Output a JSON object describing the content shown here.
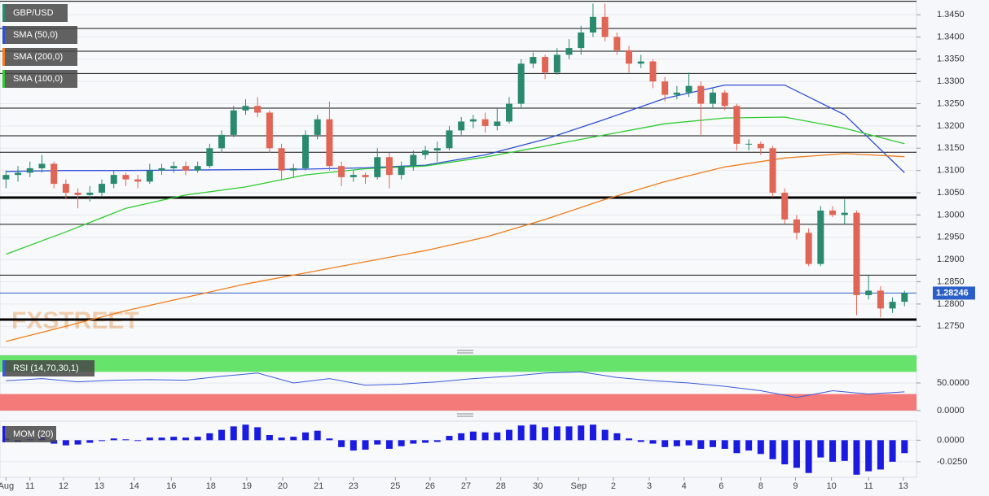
{
  "chart_data": [
    {
      "type": "candlestick",
      "name": "GBP/USD",
      "up_color": "#2a8a6e",
      "down_color": "#e06555",
      "open": [
        1.308,
        1.309,
        1.3095,
        1.3105,
        1.3115,
        1.307,
        1.305,
        1.3045,
        1.305,
        1.307,
        1.309,
        1.308,
        1.3075,
        1.31,
        1.3105,
        1.311,
        1.31,
        1.311,
        1.315,
        1.318,
        1.3235,
        1.3245,
        1.323,
        1.315,
        1.31,
        1.3105,
        1.318,
        1.3215,
        1.311,
        1.3085,
        1.309,
        1.3085,
        1.313,
        1.309,
        1.311,
        1.3135,
        1.3145,
        1.315,
        1.319,
        1.321,
        1.3215,
        1.32,
        1.321,
        1.325,
        1.334,
        1.3355,
        1.332,
        1.336,
        1.3375,
        1.341,
        1.3445,
        1.34,
        1.337,
        1.334,
        1.3345,
        1.33,
        1.327,
        1.3275,
        1.329,
        1.325,
        1.3275,
        1.3245,
        1.316,
        1.316,
        1.315,
        1.305,
        1.299,
        1.296,
        1.289,
        1.301,
        1.3,
        1.3005,
        1.282,
        1.283,
        1.279,
        1.2805
      ],
      "high": [
        1.31,
        1.311,
        1.312,
        1.3135,
        1.312,
        1.308,
        1.306,
        1.3065,
        1.308,
        1.31,
        1.3095,
        1.309,
        1.3115,
        1.3115,
        1.312,
        1.312,
        1.312,
        1.316,
        1.319,
        1.3245,
        1.326,
        1.3265,
        1.3235,
        1.316,
        1.3115,
        1.319,
        1.3225,
        1.3255,
        1.312,
        1.31,
        1.3095,
        1.315,
        1.314,
        1.312,
        1.3145,
        1.3155,
        1.3165,
        1.32,
        1.322,
        1.3225,
        1.323,
        1.324,
        1.3265,
        1.335,
        1.3365,
        1.336,
        1.3375,
        1.3395,
        1.3425,
        1.3475,
        1.3475,
        1.341,
        1.338,
        1.336,
        1.335,
        1.331,
        1.329,
        1.332,
        1.33,
        1.3285,
        1.328,
        1.325,
        1.317,
        1.3165,
        1.3155,
        1.306,
        1.3,
        1.297,
        1.302,
        1.302,
        1.3035,
        1.301,
        1.2865,
        1.284,
        1.2815,
        1.283
      ],
      "low": [
        1.306,
        1.3075,
        1.3085,
        1.3095,
        1.306,
        1.3035,
        1.3015,
        1.303,
        1.304,
        1.306,
        1.3065,
        1.306,
        1.307,
        1.309,
        1.3095,
        1.309,
        1.3095,
        1.3105,
        1.314,
        1.3175,
        1.3225,
        1.322,
        1.314,
        1.308,
        1.3085,
        1.31,
        1.317,
        1.31,
        1.3065,
        1.3075,
        1.307,
        1.308,
        1.306,
        1.308,
        1.31,
        1.3125,
        1.312,
        1.3145,
        1.318,
        1.3195,
        1.3185,
        1.319,
        1.3205,
        1.324,
        1.333,
        1.3305,
        1.3315,
        1.335,
        1.336,
        1.34,
        1.339,
        1.336,
        1.332,
        1.333,
        1.3285,
        1.3255,
        1.326,
        1.3265,
        1.318,
        1.324,
        1.3235,
        1.3145,
        1.3145,
        1.3135,
        1.304,
        1.298,
        1.2945,
        1.2885,
        1.2885,
        1.2995,
        1.298,
        1.2775,
        1.281,
        1.277,
        1.278,
        1.2795
      ],
      "close": [
        1.309,
        1.3095,
        1.3105,
        1.3115,
        1.307,
        1.305,
        1.3045,
        1.305,
        1.307,
        1.309,
        1.308,
        1.3075,
        1.31,
        1.3105,
        1.311,
        1.31,
        1.311,
        1.315,
        1.318,
        1.3235,
        1.3245,
        1.323,
        1.315,
        1.31,
        1.3105,
        1.318,
        1.3215,
        1.311,
        1.3085,
        1.309,
        1.3085,
        1.313,
        1.309,
        1.311,
        1.3135,
        1.3145,
        1.315,
        1.319,
        1.321,
        1.3215,
        1.32,
        1.321,
        1.325,
        1.334,
        1.3355,
        1.332,
        1.336,
        1.3375,
        1.341,
        1.3445,
        1.34,
        1.337,
        1.334,
        1.3345,
        1.33,
        1.327,
        1.3275,
        1.329,
        1.325,
        1.3275,
        1.3245,
        1.316,
        1.316,
        1.315,
        1.305,
        1.299,
        1.296,
        1.289,
        1.301,
        1.3,
        1.3005,
        1.282,
        1.283,
        1.279,
        1.2805,
        1.28246
      ],
      "series": [
        {
          "name": "SMA (50,0)",
          "color": "#2f4fd8",
          "x": [
            0,
            5,
            10,
            15,
            20,
            25,
            30,
            35,
            40,
            45,
            50,
            55,
            60,
            65,
            70,
            75
          ],
          "values": [
            1.3098,
            1.31,
            1.31,
            1.3101,
            1.3102,
            1.3103,
            1.3106,
            1.3112,
            1.3135,
            1.317,
            1.3215,
            1.3262,
            1.3292,
            1.3292,
            1.3225,
            1.3095
          ]
        },
        {
          "name": "SMA (200,0)",
          "color": "#f07d1a",
          "x": [
            0,
            5,
            10,
            15,
            20,
            25,
            30,
            35,
            40,
            45,
            50,
            55,
            60,
            65,
            70,
            75
          ],
          "values": [
            1.2716,
            1.275,
            1.2785,
            1.2815,
            1.2845,
            1.287,
            1.2895,
            1.292,
            1.295,
            1.299,
            1.3035,
            1.3075,
            1.3108,
            1.3128,
            1.3138,
            1.3131
          ]
        },
        {
          "name": "SMA (100,0)",
          "color": "#2ecc2e",
          "x": [
            0,
            5,
            10,
            15,
            20,
            25,
            30,
            35,
            40,
            45,
            50,
            55,
            60,
            65,
            70,
            75
          ],
          "values": [
            1.2912,
            1.2962,
            1.3015,
            1.3045,
            1.3063,
            1.309,
            1.3104,
            1.311,
            1.313,
            1.3155,
            1.318,
            1.3205,
            1.3218,
            1.322,
            1.3195,
            1.316
          ]
        }
      ],
      "levels": [
        1.348,
        1.3419,
        1.3368,
        1.3318,
        1.324,
        1.3178,
        1.3141,
        1.2979,
        1.2865
      ],
      "strong_levels": [
        1.3039,
        1.2765
      ],
      "last": 1.28246,
      "last_color": "#2a5fc9",
      "watermark": "FXSTREET",
      "xlim": [
        -0.5,
        76
      ],
      "ylim": [
        1.2703,
        1.3483
      ],
      "yticks": [
        {
          "value": 1.275,
          "label": "1.2750"
        },
        {
          "value": 1.28,
          "label": "1.2800"
        },
        {
          "value": 1.285,
          "label": "1.2850"
        },
        {
          "value": 1.29,
          "label": "1.2900"
        },
        {
          "value": 1.295,
          "label": "1.2950"
        },
        {
          "value": 1.3,
          "label": "1.3000"
        },
        {
          "value": 1.305,
          "label": "1.3050"
        },
        {
          "value": 1.31,
          "label": "1.3100"
        },
        {
          "value": 1.315,
          "label": "1.3150"
        },
        {
          "value": 1.32,
          "label": "1.3200"
        },
        {
          "value": 1.325,
          "label": "1.3250"
        },
        {
          "value": 1.33,
          "label": "1.3300"
        },
        {
          "value": 1.335,
          "label": "1.3350"
        },
        {
          "value": 1.34,
          "label": "1.3400"
        },
        {
          "value": 1.345,
          "label": "1.3450"
        }
      ]
    },
    {
      "type": "line",
      "title": "RSI (14,70,30,1)",
      "color": "#3b5bdb",
      "overbought": 70,
      "oversold": 30,
      "overbought_color": "#66e36a",
      "oversold_color": "#f47a7a",
      "x": [
        0,
        3,
        6,
        9,
        12,
        15,
        18,
        21,
        24,
        27,
        30,
        33,
        36,
        39,
        42,
        45,
        48,
        51,
        54,
        57,
        60,
        63,
        66,
        69,
        72,
        75
      ],
      "values": [
        54,
        58,
        52,
        55,
        56,
        55,
        62,
        68,
        50,
        58,
        46,
        48,
        52,
        58,
        62,
        68,
        70,
        60,
        54,
        50,
        44,
        36,
        24,
        36,
        30,
        34
      ],
      "xlim": [
        -0.5,
        76
      ],
      "ylim": [
        0,
        100
      ],
      "yticks": [
        {
          "value": 50,
          "label": "50.0000"
        },
        {
          "value": 0,
          "label": "0.0000"
        }
      ]
    },
    {
      "type": "bar",
      "title": "MOM (20)",
      "color": "#1a1ae0",
      "values": [
        0.002,
        -0.002,
        0.001,
        0.003,
        -0.004,
        -0.006,
        -0.005,
        -0.003,
        -0.001,
        0.002,
        0.001,
        0.0,
        0.003,
        0.003,
        0.004,
        0.003,
        0.004,
        0.008,
        0.012,
        0.016,
        0.018,
        0.015,
        0.006,
        0.003,
        0.004,
        0.009,
        0.011,
        0.002,
        -0.008,
        -0.012,
        -0.011,
        -0.005,
        -0.01,
        -0.007,
        -0.004,
        -0.003,
        -0.002,
        0.005,
        0.008,
        0.01,
        0.009,
        0.009,
        0.012,
        0.017,
        0.018,
        0.015,
        0.016,
        0.016,
        0.017,
        0.018,
        0.012,
        0.008,
        0.002,
        -0.002,
        -0.004,
        -0.008,
        -0.007,
        -0.006,
        -0.01,
        -0.008,
        -0.01,
        -0.015,
        -0.012,
        -0.016,
        -0.022,
        -0.028,
        -0.032,
        -0.038,
        -0.02,
        -0.025,
        -0.024,
        -0.04,
        -0.036,
        -0.034,
        -0.025,
        -0.015
      ],
      "xlim": [
        -0.5,
        76
      ],
      "ylim": [
        -0.043,
        0.022
      ],
      "yticks": [
        {
          "value": 0,
          "label": "0.0000"
        },
        {
          "value": -0.025,
          "label": "-0.0250"
        }
      ],
      "xticks": [
        {
          "value": 0,
          "label": "Aug"
        },
        {
          "value": 2.0,
          "label": "11"
        },
        {
          "value": 4.8,
          "label": "12"
        },
        {
          "value": 7.8,
          "label": "13"
        },
        {
          "value": 10.7,
          "label": "14"
        },
        {
          "value": 13.8,
          "label": "16"
        },
        {
          "value": 17.1,
          "label": "18"
        },
        {
          "value": 20.1,
          "label": "19"
        },
        {
          "value": 23.1,
          "label": "20"
        },
        {
          "value": 26.1,
          "label": "21"
        },
        {
          "value": 29.0,
          "label": "23"
        },
        {
          "value": 32.5,
          "label": "25"
        },
        {
          "value": 35.4,
          "label": "26"
        },
        {
          "value": 38.4,
          "label": "27"
        },
        {
          "value": 41.3,
          "label": "28"
        },
        {
          "value": 44.4,
          "label": "30"
        },
        {
          "value": 47.8,
          "label": "Sep"
        },
        {
          "value": 50.7,
          "label": "2"
        },
        {
          "value": 53.7,
          "label": "3"
        },
        {
          "value": 56.6,
          "label": "4"
        },
        {
          "value": 59.7,
          "label": "6"
        },
        {
          "value": 63.0,
          "label": "8"
        },
        {
          "value": 65.9,
          "label": "9"
        },
        {
          "value": 68.9,
          "label": "10"
        },
        {
          "value": 72.0,
          "label": "11"
        },
        {
          "value": 74.9,
          "label": "13"
        }
      ]
    }
  ]
}
